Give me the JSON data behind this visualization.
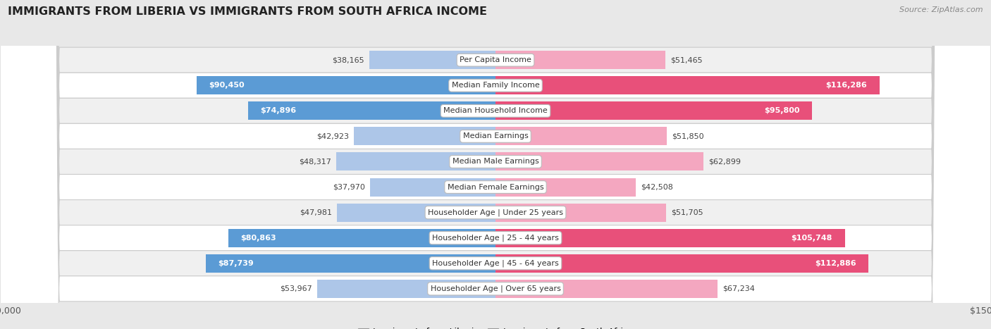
{
  "title": "IMMIGRANTS FROM LIBERIA VS IMMIGRANTS FROM SOUTH AFRICA INCOME",
  "source": "Source: ZipAtlas.com",
  "categories": [
    "Per Capita Income",
    "Median Family Income",
    "Median Household Income",
    "Median Earnings",
    "Median Male Earnings",
    "Median Female Earnings",
    "Householder Age | Under 25 years",
    "Householder Age | 25 - 44 years",
    "Householder Age | 45 - 64 years",
    "Householder Age | Over 65 years"
  ],
  "liberia_values": [
    38165,
    90450,
    74896,
    42923,
    48317,
    37970,
    47981,
    80863,
    87739,
    53967
  ],
  "south_africa_values": [
    51465,
    116286,
    95800,
    51850,
    62899,
    42508,
    51705,
    105748,
    112886,
    67234
  ],
  "liberia_labels": [
    "$38,165",
    "$90,450",
    "$74,896",
    "$42,923",
    "$48,317",
    "$37,970",
    "$47,981",
    "$80,863",
    "$87,739",
    "$53,967"
  ],
  "south_africa_labels": [
    "$51,465",
    "$116,286",
    "$95,800",
    "$51,850",
    "$62,899",
    "$42,508",
    "$51,705",
    "$105,748",
    "$112,886",
    "$67,234"
  ],
  "liberia_color_light": "#adc6e8",
  "liberia_color_dark": "#5b9bd5",
  "south_africa_color_light": "#f4a7c0",
  "south_africa_color_dark": "#e8507a",
  "dark_rows": [
    1,
    2,
    7,
    8
  ],
  "axis_max": 150000,
  "row_colors": [
    "#f0f0f0",
    "#ffffff",
    "#f0f0f0",
    "#ffffff",
    "#f0f0f0",
    "#ffffff",
    "#f0f0f0",
    "#ffffff",
    "#f0f0f0",
    "#ffffff"
  ],
  "background_color": "#e8e8e8",
  "legend_liberia": "Immigrants from Liberia",
  "legend_south_africa": "Immigrants from South Africa"
}
